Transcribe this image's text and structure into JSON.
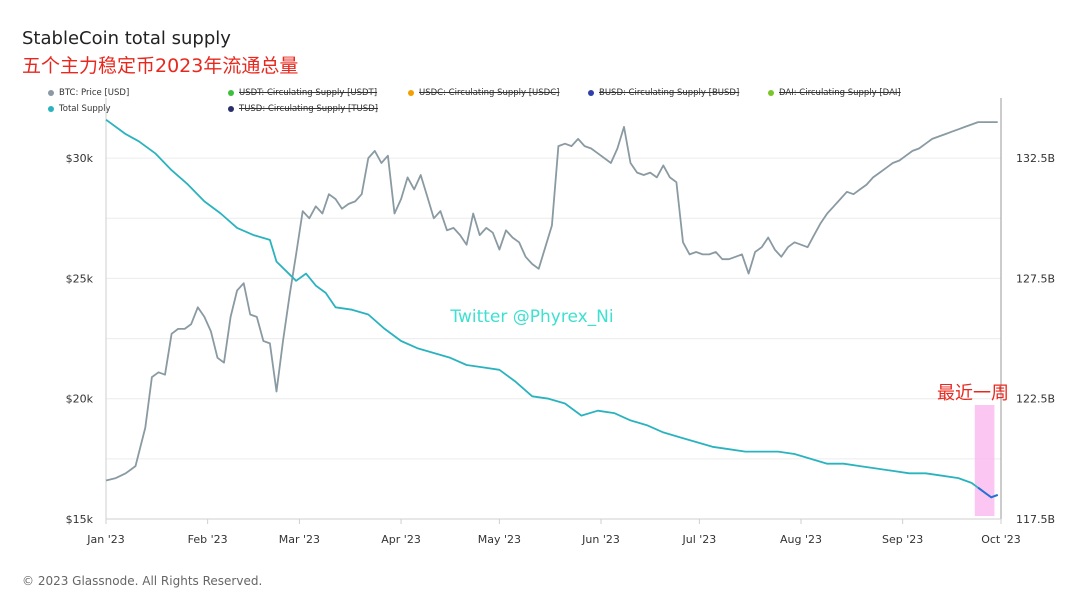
{
  "header": {
    "title": "StableCoin total supply",
    "subtitle": "五个主力稳定币2023年流通总量"
  },
  "legend": [
    {
      "label": "BTC: Price [USD]",
      "color": "#8a9aa3",
      "active": true
    },
    {
      "label": "USDT: Circulating Supply [USDT]",
      "color": "#3cbf3c",
      "active": false
    },
    {
      "label": "USDC: Circulating Supply [USDC]",
      "color": "#f0a000",
      "active": false
    },
    {
      "label": "BUSD: Circulating Supply [BUSD]",
      "color": "#2e3fa8",
      "active": false
    },
    {
      "label": "DAI: Circulating Supply [DAI]",
      "color": "#7ac62a",
      "active": false
    },
    {
      "label": "Total Supply",
      "color": "#2ab3bf",
      "active": true
    },
    {
      "label": "TUSD: Circulating Supply [TUSD]",
      "color": "#2a2f6a",
      "active": false
    }
  ],
  "footer": "© 2023 Glassnode. All Rights Reserved.",
  "watermark": "Twitter @Phyrex_Ni",
  "annotation": "最近一周",
  "chart_data": {
    "type": "line",
    "x_ticks": [
      "Jan '23",
      "Feb '23",
      "Mar '23",
      "Apr '23",
      "May '23",
      "Jun '23",
      "Jul '23",
      "Aug '23",
      "Sep '23",
      "Oct '23"
    ],
    "y_left_ticks": [
      "$15k",
      "$20k",
      "$25k",
      "$30k"
    ],
    "y_left_values": [
      15000,
      20000,
      25000,
      30000
    ],
    "y_left_range": [
      15000,
      32500
    ],
    "y_right_ticks": [
      "117.5B",
      "122.5B",
      "127.5B",
      "132.5B"
    ],
    "y_right_values": [
      117.5,
      122.5,
      127.5,
      132.5
    ],
    "y_right_range": [
      117.5,
      135.0
    ],
    "x_range_days": [
      0,
      273
    ],
    "highlight_days": [
      265,
      271
    ],
    "series": [
      {
        "name": "BTC: Price [USD]",
        "axis": "left",
        "color": "#8a9aa3",
        "x": [
          0,
          3,
          6,
          9,
          12,
          14,
          16,
          18,
          20,
          22,
          24,
          26,
          28,
          30,
          32,
          34,
          36,
          38,
          40,
          42,
          44,
          46,
          48,
          50,
          52,
          54,
          56,
          58,
          60,
          62,
          64,
          66,
          68,
          70,
          72,
          74,
          76,
          78,
          80,
          82,
          84,
          86,
          88,
          90,
          92,
          94,
          96,
          98,
          100,
          102,
          104,
          106,
          108,
          110,
          112,
          114,
          116,
          118,
          120,
          122,
          124,
          126,
          128,
          130,
          132,
          134,
          136,
          138,
          140,
          142,
          144,
          146,
          148,
          150,
          152,
          154,
          156,
          158,
          160,
          162,
          164,
          166,
          168,
          170,
          172,
          174,
          176,
          178,
          180,
          182,
          184,
          186,
          188,
          190,
          192,
          194,
          196,
          198,
          200,
          202,
          204,
          206,
          208,
          210,
          212,
          214,
          216,
          218,
          220,
          222,
          224,
          226,
          228,
          230,
          232,
          234,
          236,
          238,
          240,
          242,
          244,
          246,
          248,
          250,
          252,
          254,
          256,
          258,
          260,
          262,
          264,
          266,
          268,
          270,
          272
        ],
        "values": [
          16600,
          16700,
          16900,
          17200,
          18800,
          20900,
          21100,
          21000,
          22700,
          22900,
          22900,
          23100,
          23800,
          23400,
          22800,
          21700,
          21500,
          23400,
          24500,
          24800,
          23500,
          23400,
          22400,
          22300,
          20300,
          22400,
          24300,
          26000,
          27800,
          27500,
          28000,
          27700,
          28500,
          28300,
          27900,
          28100,
          28200,
          28500,
          30000,
          30300,
          29800,
          30100,
          27700,
          28300,
          29200,
          28700,
          29300,
          28400,
          27500,
          27800,
          27000,
          27100,
          26800,
          26400,
          27700,
          26800,
          27100,
          26900,
          26200,
          27000,
          26700,
          26500,
          25900,
          25600,
          25400,
          26300,
          27200,
          30500,
          30600,
          30500,
          30800,
          30500,
          30400,
          30200,
          30000,
          29800,
          30400,
          31300,
          29800,
          29400,
          29300,
          29400,
          29200,
          29700,
          29200,
          29000,
          26500,
          26000,
          26100,
          26000,
          26000,
          26100,
          25800,
          25800,
          25900,
          26000,
          25200,
          26100,
          26300,
          26700,
          26200,
          25900,
          26300,
          26500,
          26400,
          26300,
          26800,
          27300,
          27700,
          28000,
          28300,
          28600,
          28500,
          28700,
          28900,
          29200,
          29400,
          29600,
          29800,
          29900,
          30100,
          30300,
          30400,
          30600,
          30800,
          30900,
          31000,
          31100,
          31200,
          31300,
          31400,
          31500,
          31500,
          31500,
          31500
        ]
      },
      {
        "name": "Total Supply",
        "axis": "right",
        "color": "#2ab3bf",
        "x": [
          0,
          6,
          10,
          15,
          20,
          25,
          30,
          35,
          40,
          45,
          50,
          52,
          55,
          58,
          61,
          64,
          67,
          70,
          75,
          80,
          85,
          90,
          95,
          100,
          105,
          110,
          115,
          120,
          125,
          130,
          135,
          140,
          145,
          150,
          155,
          160,
          165,
          170,
          175,
          180,
          185,
          190,
          195,
          200,
          205,
          210,
          215,
          220,
          225,
          230,
          235,
          240,
          245,
          250,
          255,
          260,
          262,
          264,
          266,
          268,
          270,
          272
        ],
        "values": [
          134.1,
          133.5,
          133.2,
          132.7,
          132.0,
          131.4,
          130.7,
          130.2,
          129.6,
          129.3,
          129.1,
          128.2,
          127.8,
          127.4,
          127.7,
          127.2,
          126.9,
          126.3,
          126.2,
          126.0,
          125.4,
          124.9,
          124.6,
          124.4,
          124.2,
          123.9,
          123.8,
          123.7,
          123.2,
          122.6,
          122.5,
          122.3,
          121.8,
          122.0,
          121.9,
          121.6,
          121.4,
          121.1,
          120.9,
          120.7,
          120.5,
          120.4,
          120.3,
          120.3,
          120.3,
          120.2,
          120.0,
          119.8,
          119.8,
          119.7,
          119.6,
          119.5,
          119.4,
          119.4,
          119.3,
          119.2,
          119.1,
          119.0,
          118.8,
          118.6,
          118.4,
          118.5
        ]
      }
    ]
  }
}
